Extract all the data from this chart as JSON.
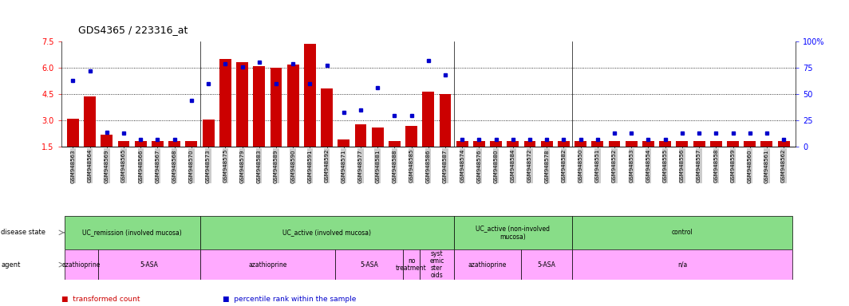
{
  "title": "GDS4365 / 223316_at",
  "samples": [
    "GSM948563",
    "GSM948564",
    "GSM948569",
    "GSM948565",
    "GSM948566",
    "GSM948567",
    "GSM948568",
    "GSM948570",
    "GSM948573",
    "GSM948575",
    "GSM948579",
    "GSM948583",
    "GSM948589",
    "GSM948590",
    "GSM948591",
    "GSM948592",
    "GSM948571",
    "GSM948577",
    "GSM948581",
    "GSM948588",
    "GSM948585",
    "GSM948586",
    "GSM948587",
    "GSM948574",
    "GSM948576",
    "GSM948580",
    "GSM948584",
    "GSM948572",
    "GSM948578",
    "GSM948582",
    "GSM948550",
    "GSM948551",
    "GSM948552",
    "GSM948553",
    "GSM948554",
    "GSM948555",
    "GSM948556",
    "GSM948557",
    "GSM948558",
    "GSM948559",
    "GSM948560",
    "GSM948561",
    "GSM948562"
  ],
  "red_values": [
    3.1,
    4.35,
    2.2,
    1.85,
    1.85,
    1.85,
    1.85,
    1.85,
    3.05,
    6.5,
    6.3,
    6.1,
    6.0,
    6.2,
    7.35,
    4.8,
    1.9,
    2.8,
    2.6,
    1.85,
    2.7,
    4.65,
    4.5,
    1.85,
    1.85,
    1.85,
    1.85,
    1.85,
    1.85,
    1.85,
    1.85,
    1.85,
    1.85,
    1.85,
    1.85,
    1.85,
    1.85,
    1.85,
    1.85,
    1.85,
    1.85,
    1.85,
    1.85
  ],
  "blue_percentiles": [
    63,
    72,
    14,
    13,
    7,
    7,
    7,
    44,
    60,
    79,
    76,
    80,
    60,
    79,
    60,
    77,
    33,
    35,
    56,
    30,
    30,
    82,
    68,
    7,
    7,
    7,
    7,
    7,
    7,
    7,
    7,
    7,
    13,
    13,
    7,
    7,
    13,
    13,
    13,
    13,
    13,
    13,
    7
  ],
  "y_min": 1.5,
  "y_max": 7.5,
  "y_left_ticks": [
    1.5,
    3.0,
    4.5,
    6.0,
    7.5
  ],
  "y_right_ticks": [
    0,
    25,
    50,
    75,
    100
  ],
  "bar_color": "#cc0000",
  "dot_color": "#0000cc",
  "chart_bg": "#ffffff",
  "label_bg": "#cccccc",
  "disease_color": "#88dd88",
  "agent_color": "#ffaaff",
  "disease_groups": [
    {
      "label": "UC_remission (involved mucosa)",
      "start": 0,
      "end": 8
    },
    {
      "label": "UC_active (involved mucosa)",
      "start": 8,
      "end": 23
    },
    {
      "label": "UC_active (non-involved\nmucosa)",
      "start": 23,
      "end": 30
    },
    {
      "label": "control",
      "start": 30,
      "end": 43
    }
  ],
  "agent_groups": [
    {
      "label": "azathioprine",
      "start": 0,
      "end": 2
    },
    {
      "label": "5-ASA",
      "start": 2,
      "end": 8
    },
    {
      "label": "azathioprine",
      "start": 8,
      "end": 16
    },
    {
      "label": "5-ASA",
      "start": 16,
      "end": 20
    },
    {
      "label": "no\ntreatment",
      "start": 20,
      "end": 21
    },
    {
      "label": "syst\nemic\nster\noids",
      "start": 21,
      "end": 23
    },
    {
      "label": "azathioprine",
      "start": 23,
      "end": 27
    },
    {
      "label": "5-ASA",
      "start": 27,
      "end": 30
    },
    {
      "label": "n/a",
      "start": 30,
      "end": 43
    }
  ]
}
